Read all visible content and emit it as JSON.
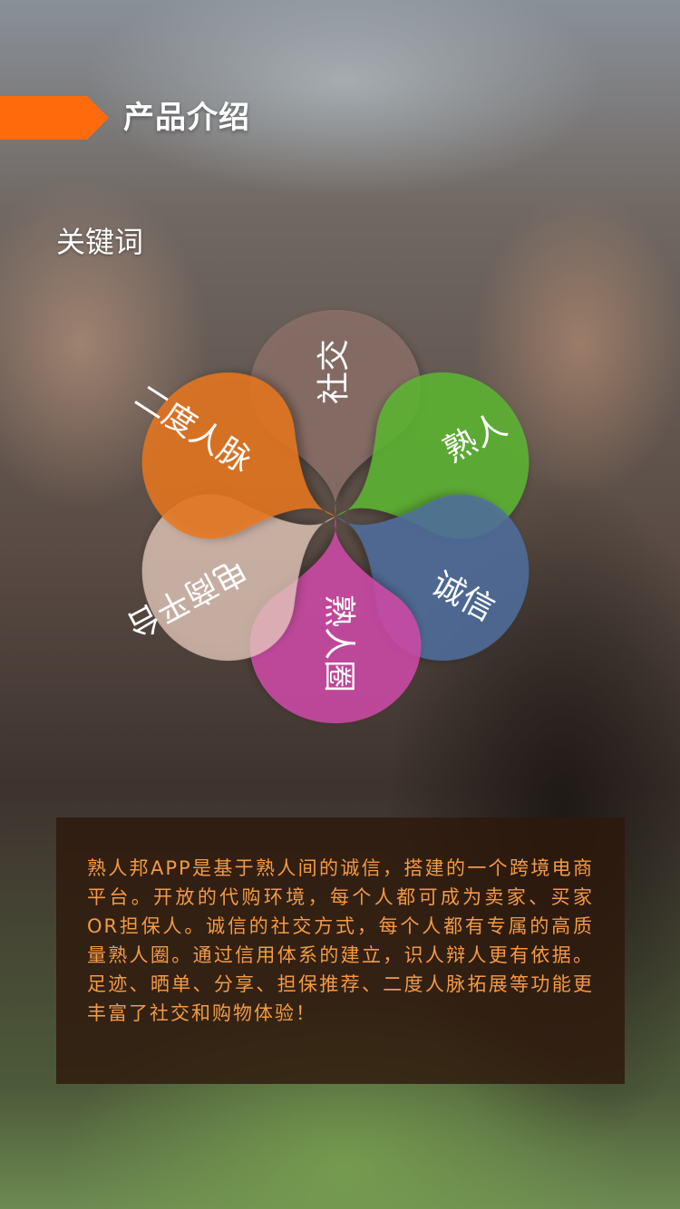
{
  "header": {
    "title": "产品介绍",
    "accent_color": "#ff6a0c"
  },
  "keywords": {
    "label": "关键词",
    "petals": [
      {
        "text": "社交",
        "color": "#8a7068"
      },
      {
        "text": "熟人",
        "color": "#5db634"
      },
      {
        "text": "诚信",
        "color": "#4f6f9e"
      },
      {
        "text": "熟人圈",
        "color": "#cf4aa8"
      },
      {
        "text": "电商平台",
        "color": "#e9c9bb"
      },
      {
        "text": "二度人脉",
        "color": "#e7771c"
      }
    ]
  },
  "description": {
    "text": "熟人邦APP是基于熟人间的诚信，搭建的一个跨境电商平台。开放的代购环境，每个人都可成为卖家、买家OR担保人。诚信的社交方式，每个人都有专属的高质量熟人圈。通过信用体系的建立，识人辩人更有依据。足迹、晒单、分享、担保推荐、二度人脉拓展等功能更丰富了社交和购物体验！",
    "text_color": "#f39a45"
  }
}
